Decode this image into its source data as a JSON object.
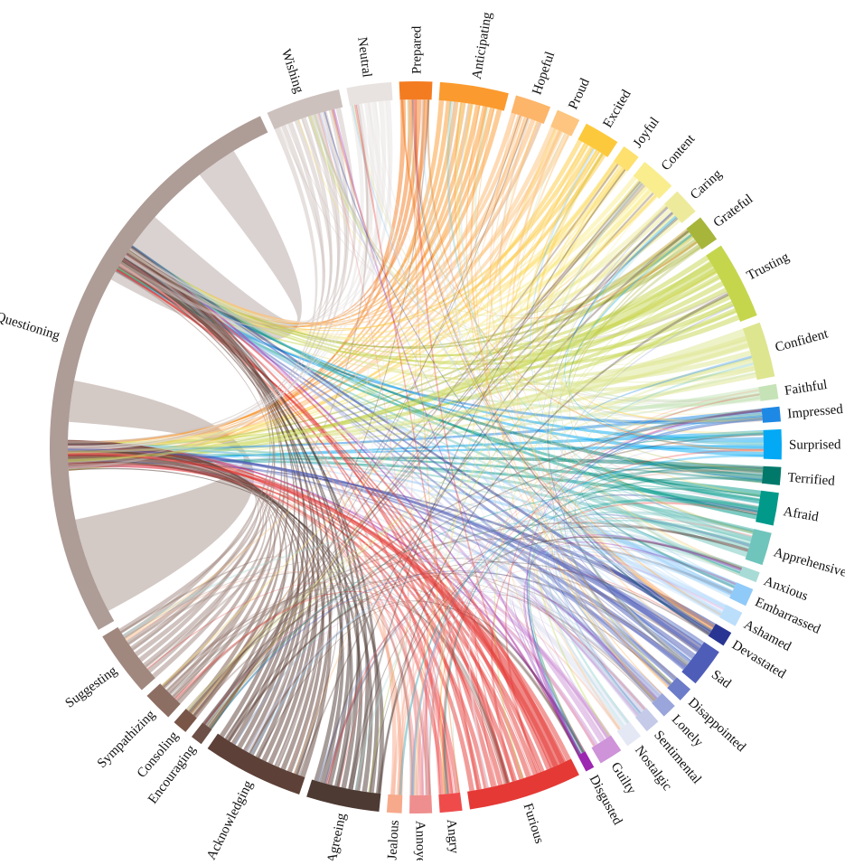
{
  "diagram": {
    "type": "chord",
    "groups": [
      {
        "label": "Prepared",
        "color": "#f47c20",
        "weight": 2.2
      },
      {
        "label": "Anticipating",
        "color": "#fb9a2e",
        "weight": 4.6
      },
      {
        "label": "Hopeful",
        "color": "#fdb56a",
        "weight": 2.4
      },
      {
        "label": "Proud",
        "color": "#fdc57f",
        "weight": 1.6
      },
      {
        "label": "Excited",
        "color": "#fdc93c",
        "weight": 2.4
      },
      {
        "label": "Joyful",
        "color": "#fde06e",
        "weight": 1.2
      },
      {
        "label": "Content",
        "color": "#f9ed8e",
        "weight": 2.4
      },
      {
        "label": "Caring",
        "color": "#edeb9b",
        "weight": 1.8
      },
      {
        "label": "Grateful",
        "color": "#a8b53b",
        "weight": 1.8
      },
      {
        "label": "Trusting",
        "color": "#c5d64d",
        "weight": 5.2
      },
      {
        "label": "Confident",
        "color": "#dde58f",
        "weight": 3.7
      },
      {
        "label": "Faithful",
        "color": "#c6e3b8",
        "weight": 1.0
      },
      {
        "label": "Impressed",
        "color": "#1e88e5",
        "weight": 1.0
      },
      {
        "label": "Surprised",
        "color": "#03a9f4",
        "weight": 2.0
      },
      {
        "label": "Terrified",
        "color": "#00796b",
        "weight": 1.2
      },
      {
        "label": "Afraid",
        "color": "#00998a",
        "weight": 2.2
      },
      {
        "label": "Apprehensive",
        "color": "#6fc5bc",
        "weight": 2.2
      },
      {
        "label": "Anxious",
        "color": "#a8dbd6",
        "weight": 0.7
      },
      {
        "label": "Embarrassed",
        "color": "#90caf9",
        "weight": 1.2
      },
      {
        "label": "Ashamed",
        "color": "#bbdefb",
        "weight": 1.0
      },
      {
        "label": "Devastated",
        "color": "#283593",
        "weight": 1.0
      },
      {
        "label": "Sad",
        "color": "#4e5db8",
        "weight": 2.6
      },
      {
        "label": "Disappointed",
        "color": "#6c7cc8",
        "weight": 1.0
      },
      {
        "label": "Lonely",
        "color": "#9aa6db",
        "weight": 1.0
      },
      {
        "label": "Sentimental",
        "color": "#c5cae9",
        "weight": 1.0
      },
      {
        "label": "Nostalgic",
        "color": "#e4e7f4",
        "weight": 1.1
      },
      {
        "label": "Guilty",
        "color": "#ce93d8",
        "weight": 1.6
      },
      {
        "label": "Disgusted",
        "color": "#9c27b0",
        "weight": 0.6
      },
      {
        "label": "Furious",
        "color": "#e53935",
        "weight": 7.6
      },
      {
        "label": "Angry",
        "color": "#ef4b4b",
        "weight": 1.5
      },
      {
        "label": "Annoyed",
        "color": "#ef8e8e",
        "weight": 1.5
      },
      {
        "label": "Jealous",
        "color": "#f7a98b",
        "weight": 1.0
      },
      {
        "label": "Agreeing",
        "color": "#4d3a33",
        "weight": 4.9
      },
      {
        "label": "Acknowledging",
        "color": "#5d4037",
        "weight": 6.8
      },
      {
        "label": "Encouraging",
        "color": "#6d5048",
        "weight": 0.8
      },
      {
        "label": "Consoling",
        "color": "#795548",
        "weight": 1.0
      },
      {
        "label": "Sympathizing",
        "color": "#8d6e63",
        "weight": 2.0
      },
      {
        "label": "Suggesting",
        "color": "#a1887f",
        "weight": 4.4
      },
      {
        "label": "Questioning",
        "color": "#ae9c96",
        "weight": 40.0
      },
      {
        "label": "Wishing",
        "color": "#cdc1bd",
        "weight": 5.0
      },
      {
        "label": "Neutral",
        "color": "#e8e3e1",
        "weight": 3.0
      }
    ],
    "hubs": [
      {
        "group": "Questioning",
        "fraction": 0.3
      },
      {
        "group": "Questioning",
        "fraction": 0.66
      }
    ]
  }
}
